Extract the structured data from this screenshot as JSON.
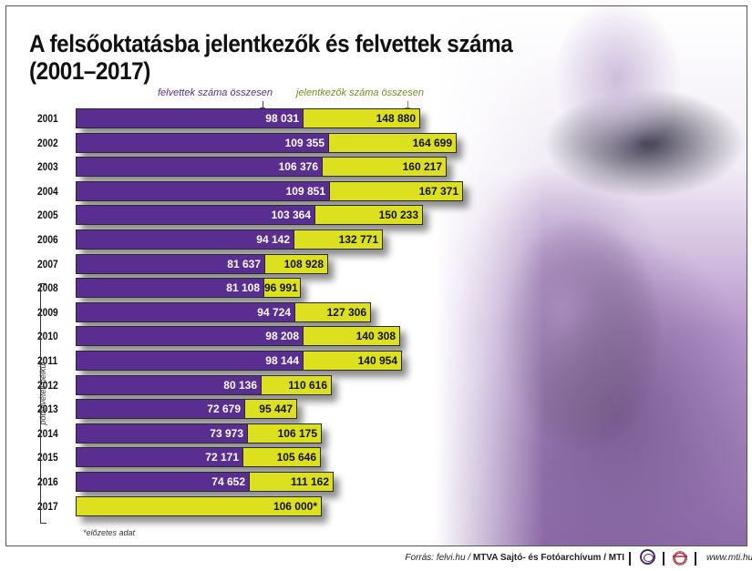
{
  "title_line1": "A felsőoktatásba jelentkezők és felvettek száma",
  "title_line2": "(2001–2017)",
  "legend": {
    "admitted": "felvettek száma összesen",
    "applicants": "jelentkezők száma összesen"
  },
  "colors": {
    "admitted": "#5a2d91",
    "applicants": "#dde01e"
  },
  "bracket_label": "pótfelvételi nélkül",
  "footnote": "*előzetes adat",
  "footer": {
    "source_prefix": "Forrás: felvi.hu /",
    "source_main": "MTVA Sajtó- és Fotóarchívum / MTI",
    "url": "www.mti.hu"
  },
  "rows": [
    {
      "year": "2001",
      "admitted": "98 031",
      "applicants": "148 880"
    },
    {
      "year": "2002",
      "admitted": "109 355",
      "applicants": "164 699"
    },
    {
      "year": "2003",
      "admitted": "106 376",
      "applicants": "160 217"
    },
    {
      "year": "2004",
      "admitted": "109 851",
      "applicants": "167 371"
    },
    {
      "year": "2005",
      "admitted": "103 364",
      "applicants": "150 233"
    },
    {
      "year": "2006",
      "admitted": "94 142",
      "applicants": "132 771"
    },
    {
      "year": "2007",
      "admitted": "81 637",
      "applicants": "108 928"
    },
    {
      "year": "2008",
      "admitted": "81 108",
      "applicants": "96 991"
    },
    {
      "year": "2009",
      "admitted": "94 724",
      "applicants": "127 306"
    },
    {
      "year": "2010",
      "admitted": "98 208",
      "applicants": "140 308"
    },
    {
      "year": "2011",
      "admitted": "98 144",
      "applicants": "140 954"
    },
    {
      "year": "2012",
      "admitted": "80 136",
      "applicants": "110 616"
    },
    {
      "year": "2013",
      "admitted": "72 679",
      "applicants": "95 447"
    },
    {
      "year": "2014",
      "admitted": "73 973",
      "applicants": "106 175"
    },
    {
      "year": "2015",
      "admitted": "72 171",
      "applicants": "105 646"
    },
    {
      "year": "2016",
      "admitted": "74 652",
      "applicants": "111 162"
    },
    {
      "year": "2017",
      "admitted": "",
      "applicants": "106 000*"
    }
  ],
  "chart_data": {
    "type": "bar",
    "orientation": "horizontal",
    "title": "A felsőoktatásba jelentkezők és felvettek száma (2001–2017)",
    "categories": [
      "2001",
      "2002",
      "2003",
      "2004",
      "2005",
      "2006",
      "2007",
      "2008",
      "2009",
      "2010",
      "2011",
      "2012",
      "2013",
      "2014",
      "2015",
      "2016",
      "2017"
    ],
    "series": [
      {
        "name": "felvettek száma összesen",
        "color": "#5a2d91",
        "values": [
          98031,
          109355,
          106376,
          109851,
          103364,
          94142,
          81637,
          81108,
          94724,
          98208,
          98144,
          80136,
          72679,
          73973,
          72171,
          74652,
          null
        ]
      },
      {
        "name": "jelentkezők száma összesen",
        "color": "#dde01e",
        "values": [
          148880,
          164699,
          160217,
          167371,
          150233,
          132771,
          108928,
          96991,
          127306,
          140308,
          140954,
          110616,
          95447,
          106175,
          105646,
          111162,
          106000
        ]
      }
    ],
    "overlay": true,
    "annotations": [
      "pótfelvételi nélkül (2008–2017)",
      "*előzetes adat (2017)"
    ],
    "xlabel": "",
    "ylabel": "",
    "grid": false,
    "legend_position": "top"
  }
}
